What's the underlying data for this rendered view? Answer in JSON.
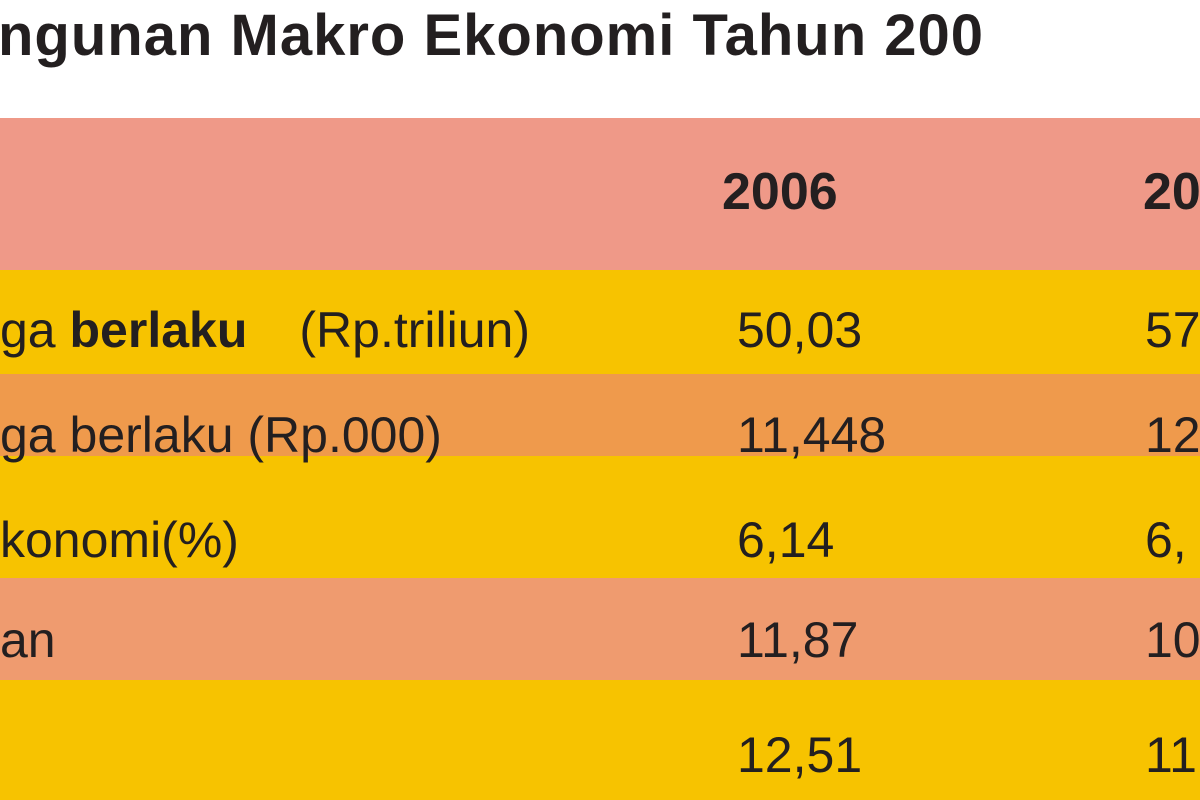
{
  "header": {
    "title": "ngunan Makro Ekonomi Tahun 200"
  },
  "table": {
    "columns": [
      "2006",
      "20"
    ],
    "rows": [
      {
        "label": [
          "ga ",
          "berlaku",
          "(Rp.triliun)"
        ],
        "cells": [
          "50,03",
          "57"
        ]
      },
      {
        "label": [
          "ga berlaku (Rp.000)"
        ],
        "cells": [
          "11,448",
          "12"
        ]
      },
      {
        "label": [
          "konomi(%)"
        ],
        "cells": [
          "6,14",
          "6,"
        ]
      },
      {
        "label": [
          "an"
        ],
        "cells": [
          "11,87",
          "10"
        ]
      },
      {
        "cells": [
          "12,51",
          "11"
        ]
      }
    ]
  }
}
